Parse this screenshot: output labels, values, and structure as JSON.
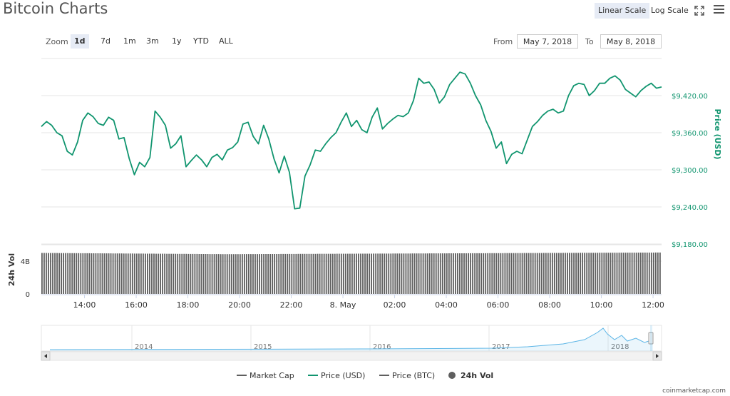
{
  "header": {
    "title": "Bitcoin Charts",
    "scale_linear": "Linear Scale",
    "scale_log": "Log Scale"
  },
  "zoom": {
    "label": "Zoom",
    "buttons": [
      "1d",
      "7d",
      "1m",
      "3m",
      "1y",
      "YTD",
      "ALL"
    ],
    "active": "1d"
  },
  "range": {
    "from_label": "From",
    "from_value": "May 7, 2018",
    "to_label": "To",
    "to_value": "May 8, 2018"
  },
  "watermark": "coinmarketcap.com",
  "colors": {
    "price": "#11956f",
    "volume": "#5f5f5f",
    "navigator": "#5bb5e6"
  },
  "chart_data": {
    "type": "line",
    "price": {
      "name": "Price (USD)",
      "ylabel": "Price (USD)",
      "ylim": [
        9180,
        9480
      ],
      "yticks": [
        9180,
        9240,
        9300,
        9360,
        9420
      ],
      "ytick_labels": [
        "$9,180.00",
        "$9,240.00",
        "$9,300.00",
        "$9,360.00",
        "$9,420.00"
      ],
      "x_hours": [
        0,
        0.2,
        0.4,
        0.6,
        0.8,
        1.0,
        1.2,
        1.4,
        1.6,
        1.8,
        2.0,
        2.2,
        2.4,
        2.6,
        2.8,
        3.0,
        3.2,
        3.4,
        3.6,
        3.8,
        4.0,
        4.2,
        4.4,
        4.6,
        4.8,
        5.0,
        5.2,
        5.4,
        5.6,
        5.8,
        6.0,
        6.2,
        6.4,
        6.6,
        6.8,
        7.0,
        7.2,
        7.4,
        7.6,
        7.8,
        8.0,
        8.2,
        8.4,
        8.6,
        8.8,
        9.0,
        9.2,
        9.4,
        9.6,
        9.8,
        10.0,
        10.2,
        10.4,
        10.6,
        10.8,
        11.0,
        11.2,
        11.4,
        11.6,
        11.8,
        12.0,
        12.2,
        12.4,
        12.6,
        12.8,
        13.0,
        13.2,
        13.4,
        13.6,
        13.8,
        14.0,
        14.2,
        14.4,
        14.6,
        14.8,
        15.0,
        15.2,
        15.4,
        15.6,
        15.8,
        16.0,
        16.2,
        16.4,
        16.6,
        16.8,
        17.0,
        17.2,
        17.4,
        17.6,
        17.8,
        18.0,
        18.2,
        18.4,
        18.6,
        18.8,
        19.0,
        19.2,
        19.4,
        19.6,
        19.8,
        20.0,
        20.2,
        20.4,
        20.6,
        20.8,
        21.0,
        21.2,
        21.4,
        21.6,
        21.8,
        22.0,
        22.2,
        22.4,
        22.6,
        22.8,
        23.0,
        23.2,
        23.4,
        23.6,
        23.8,
        24.0
      ],
      "values": [
        9370,
        9378,
        9372,
        9360,
        9355,
        9330,
        9324,
        9345,
        9380,
        9392,
        9386,
        9375,
        9372,
        9385,
        9380,
        9350,
        9352,
        9318,
        9292,
        9312,
        9305,
        9320,
        9395,
        9385,
        9372,
        9335,
        9342,
        9355,
        9305,
        9315,
        9324,
        9316,
        9305,
        9320,
        9325,
        9316,
        9332,
        9336,
        9345,
        9374,
        9377,
        9354,
        9342,
        9372,
        9350,
        9318,
        9295,
        9322,
        9296,
        9237,
        9238,
        9290,
        9308,
        9332,
        9330,
        9342,
        9352,
        9360,
        9377,
        9392,
        9370,
        9380,
        9365,
        9360,
        9385,
        9400,
        9366,
        9375,
        9382,
        9388,
        9386,
        9392,
        9412,
        9448,
        9440,
        9442,
        9430,
        9408,
        9418,
        9438,
        9448,
        9458,
        9455,
        9440,
        9420,
        9405,
        9380,
        9362,
        9335,
        9345,
        9310,
        9325,
        9330,
        9326,
        9348,
        9370,
        9378,
        9388,
        9395,
        9398,
        9392,
        9395,
        9420,
        9436,
        9440,
        9438,
        9420,
        9428,
        9440,
        9440,
        9448,
        9452,
        9445,
        9430,
        9424,
        9418,
        9428,
        9435,
        9440,
        9432,
        9434
      ]
    },
    "volume": {
      "name": "24h Vol",
      "ylabel": "24h Vol",
      "yticks": [
        "0",
        "4B"
      ],
      "ymax_billion": 6,
      "bar_count": 288,
      "level_start_billion": 5.0,
      "level_mid_billion": 4.85,
      "level_end_billion": 5.05
    },
    "x_axis": {
      "start_time": "12:20",
      "end_hours": 24.0,
      "ticks": [
        "14:00",
        "16:00",
        "18:00",
        "20:00",
        "22:00",
        "8. May",
        "02:00",
        "04:00",
        "06:00",
        "08:00",
        "10:00",
        "12:00"
      ],
      "tick_hours": [
        1.67,
        3.67,
        5.67,
        7.67,
        9.67,
        11.67,
        13.67,
        15.67,
        17.67,
        19.67,
        21.67,
        23.67
      ]
    },
    "navigator": {
      "years": [
        "2014",
        "2015",
        "2016",
        "2017",
        "2018"
      ]
    },
    "legend": [
      {
        "label": "Market Cap",
        "marker": "line",
        "color": "#5f5f5f",
        "bold": false
      },
      {
        "label": "Price (USD)",
        "marker": "line",
        "color": "#11956f",
        "bold": false
      },
      {
        "label": "Price (BTC)",
        "marker": "line",
        "color": "#5f5f5f",
        "bold": false
      },
      {
        "label": "24h Vol",
        "marker": "circle",
        "color": "#5f5f5f",
        "bold": true
      }
    ]
  }
}
